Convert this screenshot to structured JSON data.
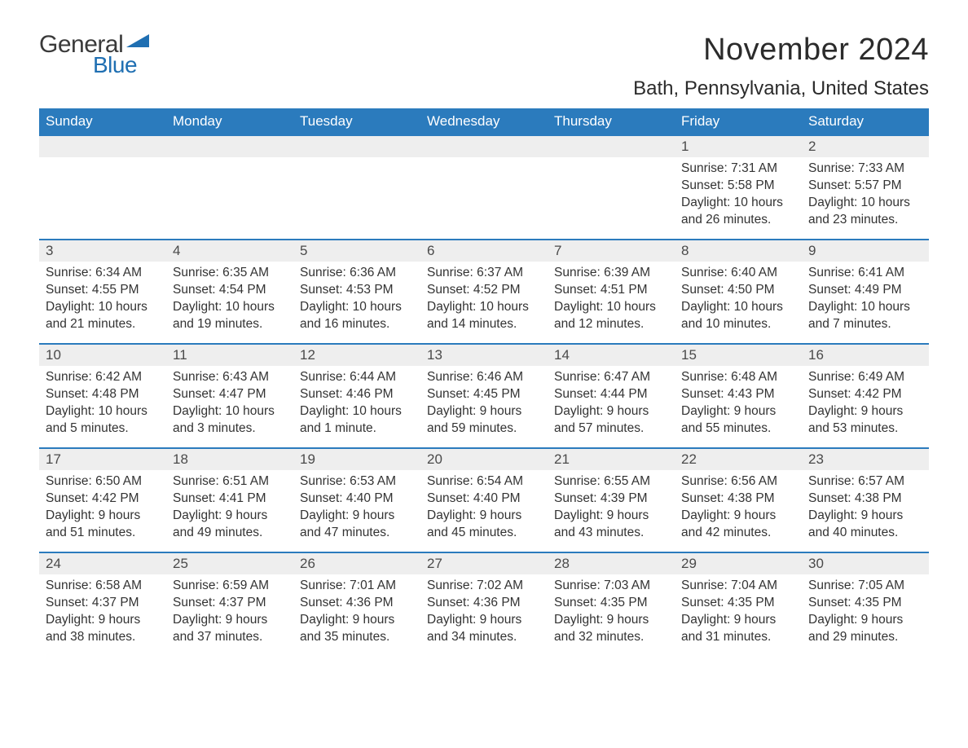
{
  "brand": {
    "word1": "General",
    "word2": "Blue",
    "accent_color": "#1f6fb2"
  },
  "title": {
    "month": "November 2024",
    "location": "Bath, Pennsylvania, United States"
  },
  "colors": {
    "header_bg": "#2b7bbd",
    "header_text": "#ffffff",
    "week_border": "#2b7bbd",
    "daynum_bg": "#eeeeee",
    "body_text": "#333333",
    "page_bg": "#ffffff"
  },
  "typography": {
    "body_fontsize": 15.5,
    "daynum_fontsize": 17,
    "weekday_fontsize": 17,
    "title_fontsize": 38,
    "location_fontsize": 24
  },
  "weekdays": [
    "Sunday",
    "Monday",
    "Tuesday",
    "Wednesday",
    "Thursday",
    "Friday",
    "Saturday"
  ],
  "weeks": [
    [
      {
        "day": "",
        "sunrise": "",
        "sunset": "",
        "daylight": ""
      },
      {
        "day": "",
        "sunrise": "",
        "sunset": "",
        "daylight": ""
      },
      {
        "day": "",
        "sunrise": "",
        "sunset": "",
        "daylight": ""
      },
      {
        "day": "",
        "sunrise": "",
        "sunset": "",
        "daylight": ""
      },
      {
        "day": "",
        "sunrise": "",
        "sunset": "",
        "daylight": ""
      },
      {
        "day": "1",
        "sunrise": "7:31 AM",
        "sunset": "5:58 PM",
        "daylight": "10 hours and 26 minutes."
      },
      {
        "day": "2",
        "sunrise": "7:33 AM",
        "sunset": "5:57 PM",
        "daylight": "10 hours and 23 minutes."
      }
    ],
    [
      {
        "day": "3",
        "sunrise": "6:34 AM",
        "sunset": "4:55 PM",
        "daylight": "10 hours and 21 minutes."
      },
      {
        "day": "4",
        "sunrise": "6:35 AM",
        "sunset": "4:54 PM",
        "daylight": "10 hours and 19 minutes."
      },
      {
        "day": "5",
        "sunrise": "6:36 AM",
        "sunset": "4:53 PM",
        "daylight": "10 hours and 16 minutes."
      },
      {
        "day": "6",
        "sunrise": "6:37 AM",
        "sunset": "4:52 PM",
        "daylight": "10 hours and 14 minutes."
      },
      {
        "day": "7",
        "sunrise": "6:39 AM",
        "sunset": "4:51 PM",
        "daylight": "10 hours and 12 minutes."
      },
      {
        "day": "8",
        "sunrise": "6:40 AM",
        "sunset": "4:50 PM",
        "daylight": "10 hours and 10 minutes."
      },
      {
        "day": "9",
        "sunrise": "6:41 AM",
        "sunset": "4:49 PM",
        "daylight": "10 hours and 7 minutes."
      }
    ],
    [
      {
        "day": "10",
        "sunrise": "6:42 AM",
        "sunset": "4:48 PM",
        "daylight": "10 hours and 5 minutes."
      },
      {
        "day": "11",
        "sunrise": "6:43 AM",
        "sunset": "4:47 PM",
        "daylight": "10 hours and 3 minutes."
      },
      {
        "day": "12",
        "sunrise": "6:44 AM",
        "sunset": "4:46 PM",
        "daylight": "10 hours and 1 minute."
      },
      {
        "day": "13",
        "sunrise": "6:46 AM",
        "sunset": "4:45 PM",
        "daylight": "9 hours and 59 minutes."
      },
      {
        "day": "14",
        "sunrise": "6:47 AM",
        "sunset": "4:44 PM",
        "daylight": "9 hours and 57 minutes."
      },
      {
        "day": "15",
        "sunrise": "6:48 AM",
        "sunset": "4:43 PM",
        "daylight": "9 hours and 55 minutes."
      },
      {
        "day": "16",
        "sunrise": "6:49 AM",
        "sunset": "4:42 PM",
        "daylight": "9 hours and 53 minutes."
      }
    ],
    [
      {
        "day": "17",
        "sunrise": "6:50 AM",
        "sunset": "4:42 PM",
        "daylight": "9 hours and 51 minutes."
      },
      {
        "day": "18",
        "sunrise": "6:51 AM",
        "sunset": "4:41 PM",
        "daylight": "9 hours and 49 minutes."
      },
      {
        "day": "19",
        "sunrise": "6:53 AM",
        "sunset": "4:40 PM",
        "daylight": "9 hours and 47 minutes."
      },
      {
        "day": "20",
        "sunrise": "6:54 AM",
        "sunset": "4:40 PM",
        "daylight": "9 hours and 45 minutes."
      },
      {
        "day": "21",
        "sunrise": "6:55 AM",
        "sunset": "4:39 PM",
        "daylight": "9 hours and 43 minutes."
      },
      {
        "day": "22",
        "sunrise": "6:56 AM",
        "sunset": "4:38 PM",
        "daylight": "9 hours and 42 minutes."
      },
      {
        "day": "23",
        "sunrise": "6:57 AM",
        "sunset": "4:38 PM",
        "daylight": "9 hours and 40 minutes."
      }
    ],
    [
      {
        "day": "24",
        "sunrise": "6:58 AM",
        "sunset": "4:37 PM",
        "daylight": "9 hours and 38 minutes."
      },
      {
        "day": "25",
        "sunrise": "6:59 AM",
        "sunset": "4:37 PM",
        "daylight": "9 hours and 37 minutes."
      },
      {
        "day": "26",
        "sunrise": "7:01 AM",
        "sunset": "4:36 PM",
        "daylight": "9 hours and 35 minutes."
      },
      {
        "day": "27",
        "sunrise": "7:02 AM",
        "sunset": "4:36 PM",
        "daylight": "9 hours and 34 minutes."
      },
      {
        "day": "28",
        "sunrise": "7:03 AM",
        "sunset": "4:35 PM",
        "daylight": "9 hours and 32 minutes."
      },
      {
        "day": "29",
        "sunrise": "7:04 AM",
        "sunset": "4:35 PM",
        "daylight": "9 hours and 31 minutes."
      },
      {
        "day": "30",
        "sunrise": "7:05 AM",
        "sunset": "4:35 PM",
        "daylight": "9 hours and 29 minutes."
      }
    ]
  ],
  "labels": {
    "sunrise": "Sunrise:",
    "sunset": "Sunset:",
    "daylight": "Daylight:"
  }
}
